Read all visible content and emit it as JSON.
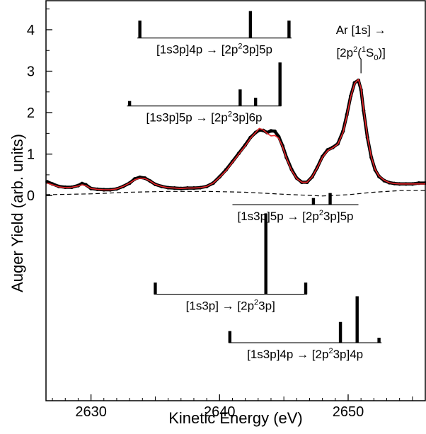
{
  "chart_data": {
    "type": "line",
    "title": "",
    "xlabel": "Kinetic Energy (eV)",
    "ylabel": "Auger Yield (arb. units)",
    "xlim": [
      2626.5,
      2656
    ],
    "ylim": [
      -4.95,
      4.7
    ],
    "x_ticks": [
      2630,
      2640,
      2650
    ],
    "y_ticks": [
      0,
      1,
      2,
      3,
      4
    ],
    "grid": false,
    "legend": "none",
    "colors": {
      "data": "#000000",
      "fit": "#e8262a",
      "background": "#000000",
      "axis": "#000000"
    },
    "series": [
      {
        "style": "points",
        "x": [
          2626.6,
          2627.0,
          2627.5,
          2628.0,
          2628.5,
          2629.0,
          2629.3,
          2629.6,
          2630.0,
          2630.5,
          2631.0,
          2631.5,
          2632.0,
          2632.5,
          2633.0,
          2633.4,
          2633.8,
          2634.2,
          2634.6,
          2635.0,
          2635.5,
          2636.0,
          2636.5,
          2637.0,
          2637.5,
          2638.0,
          2638.5,
          2639.0,
          2639.5,
          2640.0,
          2640.5,
          2641.0,
          2641.5,
          2642.0,
          2642.4,
          2642.8,
          2643.1,
          2643.4,
          2643.7,
          2644.0,
          2644.3,
          2644.6,
          2644.9,
          2645.2,
          2645.6,
          2646.0,
          2646.4,
          2646.8,
          2647.2,
          2647.6,
          2648.0,
          2648.4,
          2648.8,
          2649.2,
          2649.6,
          2649.9,
          2650.2,
          2650.5,
          2650.8,
          2651.0,
          2651.2,
          2651.5,
          2651.8,
          2652.1,
          2652.4,
          2652.8,
          2653.2,
          2653.6,
          2654.0,
          2654.5,
          2655.0,
          2655.5,
          2656.0
        ],
        "y": [
          0.33,
          0.28,
          0.22,
          0.2,
          0.2,
          0.24,
          0.29,
          0.26,
          0.17,
          0.15,
          0.14,
          0.14,
          0.16,
          0.22,
          0.3,
          0.4,
          0.44,
          0.42,
          0.35,
          0.27,
          0.22,
          0.19,
          0.18,
          0.17,
          0.18,
          0.18,
          0.19,
          0.22,
          0.3,
          0.45,
          0.62,
          0.82,
          1.02,
          1.22,
          1.4,
          1.52,
          1.58,
          1.57,
          1.52,
          1.56,
          1.55,
          1.42,
          1.2,
          0.92,
          0.63,
          0.42,
          0.32,
          0.32,
          0.45,
          0.68,
          0.94,
          1.1,
          1.16,
          1.25,
          1.55,
          1.95,
          2.4,
          2.72,
          2.78,
          2.55,
          2.05,
          1.4,
          0.92,
          0.62,
          0.46,
          0.36,
          0.31,
          0.29,
          0.28,
          0.28,
          0.28,
          0.3,
          0.3
        ]
      },
      {
        "style": "line",
        "x": [
          2626.6,
          2627.0,
          2627.5,
          2628.0,
          2628.5,
          2629.0,
          2629.3,
          2629.6,
          2630.0,
          2630.5,
          2631.0,
          2631.5,
          2632.0,
          2632.5,
          2633.0,
          2633.4,
          2633.8,
          2634.2,
          2634.6,
          2635.0,
          2635.5,
          2636.0,
          2636.5,
          2637.0,
          2637.5,
          2638.0,
          2638.5,
          2639.0,
          2639.5,
          2640.0,
          2640.5,
          2641.0,
          2641.5,
          2642.0,
          2642.4,
          2642.8,
          2643.1,
          2643.4,
          2643.7,
          2644.0,
          2644.3,
          2644.6,
          2644.9,
          2645.2,
          2645.6,
          2646.0,
          2646.4,
          2646.8,
          2647.2,
          2647.6,
          2648.0,
          2648.4,
          2648.8,
          2649.2,
          2649.6,
          2649.9,
          2650.2,
          2650.5,
          2650.8,
          2651.0,
          2651.2,
          2651.5,
          2651.8,
          2652.1,
          2652.4,
          2652.8,
          2653.2,
          2653.6,
          2654.0,
          2654.5,
          2655.0,
          2655.5,
          2656.0
        ],
        "y": [
          0.3,
          0.26,
          0.21,
          0.19,
          0.2,
          0.23,
          0.26,
          0.24,
          0.17,
          0.15,
          0.14,
          0.14,
          0.16,
          0.22,
          0.3,
          0.38,
          0.42,
          0.41,
          0.35,
          0.27,
          0.22,
          0.19,
          0.18,
          0.17,
          0.18,
          0.18,
          0.19,
          0.22,
          0.3,
          0.44,
          0.6,
          0.8,
          1.0,
          1.2,
          1.38,
          1.52,
          1.62,
          1.58,
          1.5,
          1.44,
          1.45,
          1.38,
          1.18,
          0.9,
          0.61,
          0.41,
          0.32,
          0.32,
          0.45,
          0.67,
          0.92,
          1.08,
          1.15,
          1.24,
          1.52,
          1.92,
          2.38,
          2.7,
          2.8,
          2.58,
          2.08,
          1.42,
          0.93,
          0.63,
          0.47,
          0.37,
          0.31,
          0.29,
          0.28,
          0.28,
          0.28,
          0.28,
          0.28
        ]
      },
      {
        "style": "dashed",
        "x": [
          2626.5,
          2630,
          2633,
          2636,
          2639,
          2642,
          2645,
          2648,
          2650,
          2652,
          2654,
          2656
        ],
        "y": [
          0.02,
          0.04,
          0.08,
          0.1,
          0.1,
          0.08,
          0.03,
          -0.01,
          0.02,
          0.08,
          0.12,
          0.12
        ]
      }
    ],
    "stick_groups": [
      {
        "label_parts": [
          "[1s3p]4p",
          "→",
          "[2p",
          "2",
          "3p]5p"
        ],
        "y_base": 3.8,
        "xrange": [
          2633.6,
          2645.6
        ],
        "sticks": [
          {
            "x": 2633.8,
            "h": 0.42
          },
          {
            "x": 2642.4,
            "h": 0.65
          },
          {
            "x": 2645.4,
            "h": 0.42
          }
        ]
      },
      {
        "label_parts": [
          "[1s3p]5p",
          "→",
          "[2p",
          "2",
          "3p]6p"
        ],
        "y_base": 2.16,
        "xrange": [
          2632.8,
          2644.8
        ],
        "sticks": [
          {
            "x": 2633.0,
            "h": 0.12
          },
          {
            "x": 2641.6,
            "h": 0.4
          },
          {
            "x": 2642.8,
            "h": 0.2
          },
          {
            "x": 2644.7,
            "h": 1.05
          }
        ]
      },
      {
        "label_parts": [
          "[1s3p]5p",
          "→",
          "[2p",
          "2",
          "3p]5p"
        ],
        "y_base": -0.22,
        "xrange": [
          2641.0,
          2650.8
        ],
        "sticks": [
          {
            "x": 2647.3,
            "h": 0.16
          },
          {
            "x": 2648.6,
            "h": 0.28
          }
        ]
      },
      {
        "label_parts": [
          "[1s3p]",
          "→",
          "[2p",
          "2",
          "3p]"
        ],
        "y_base": -2.38,
        "xrange": [
          2634.9,
          2646.8
        ],
        "sticks": [
          {
            "x": 2635.0,
            "h": 0.28
          },
          {
            "x": 2643.6,
            "h": 1.95
          },
          {
            "x": 2646.7,
            "h": 0.28
          }
        ]
      },
      {
        "label_parts": [
          "[1s3p]4p",
          "→",
          "[2p",
          "2",
          "3p]4p"
        ],
        "y_base": -3.55,
        "xrange": [
          2640.7,
          2652.6
        ],
        "sticks": [
          {
            "x": 2640.8,
            "h": 0.28
          },
          {
            "x": 2649.4,
            "h": 0.5
          },
          {
            "x": 2650.7,
            "h": 1.12
          },
          {
            "x": 2652.4,
            "h": 0.12
          }
        ]
      }
    ],
    "annotation": {
      "x": 2651.0,
      "y_top": 3.3,
      "y_bottom": 2.95,
      "line1": "Ar [1s]",
      "arrow": "→",
      "line2_parts": [
        "[2p",
        "2",
        "(",
        "1",
        "S",
        "0",
        ")]"
      ]
    }
  }
}
